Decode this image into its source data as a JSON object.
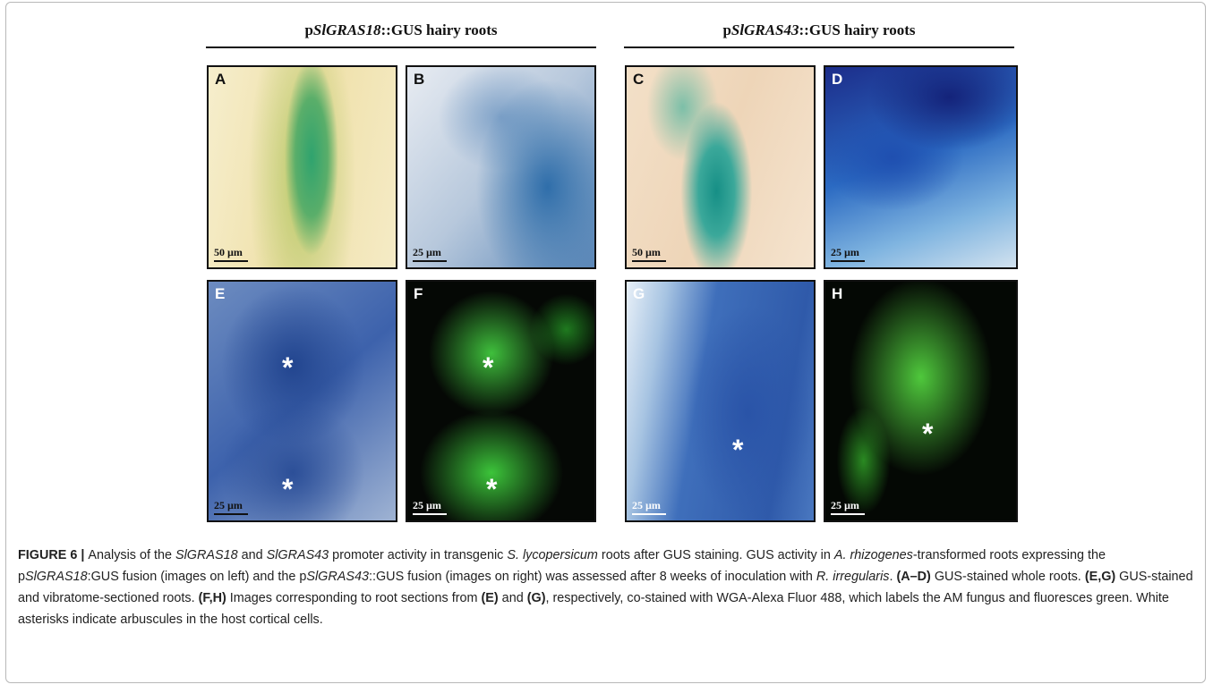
{
  "figure": {
    "headers": [
      [
        "p",
        "SlGRAS18",
        "::GUS hairy roots"
      ],
      [
        "p",
        "SlGRAS43",
        "::GUS hairy roots"
      ]
    ],
    "panels": [
      {
        "label": "A",
        "scale_bar": "50 µm",
        "asterisks": []
      },
      {
        "label": "B",
        "scale_bar": "25 µm",
        "asterisks": []
      },
      {
        "label": "C",
        "scale_bar": "50 µm",
        "asterisks": []
      },
      {
        "label": "D",
        "scale_bar": "25 µm",
        "asterisks": []
      },
      {
        "label": "E",
        "scale_bar": "25 µm",
        "asterisks": [
          "*",
          "*"
        ]
      },
      {
        "label": "F",
        "scale_bar": "25 µm",
        "asterisks": [
          "*",
          "*"
        ]
      },
      {
        "label": "G",
        "scale_bar": "25 µm",
        "asterisks": [
          "*"
        ]
      },
      {
        "label": "H",
        "scale_bar": "25 µm",
        "asterisks": [
          "*"
        ]
      }
    ]
  },
  "caption": [
    "FIGURE 6 | ",
    "Analysis of the ",
    "SlGRAS18",
    " and ",
    "SlGRAS43",
    " promoter activity in transgenic ",
    "S. lycopersicum",
    " roots after GUS staining. GUS activity in ",
    "A. rhizogenes",
    "-transformed roots expressing the p",
    "SlGRAS18",
    ":GUS fusion (images on left) and the p",
    "SlGRAS43",
    "::GUS fusion (images on right) was assessed after 8 weeks of inoculation with ",
    "R. irregularis",
    ". ",
    "(A–D)",
    " GUS-stained whole roots. ",
    "(E,G)",
    " GUS-stained and vibratome-sectioned roots. ",
    "(F,H)",
    " Images corresponding to root sections from ",
    "(E)",
    " and ",
    "(G)",
    ", respectively, co-stained with WGA-Alexa Fluor 488, which labels the AM fungus and fluoresces green. White asterisks indicate arbuscules in the host cortical cells."
  ]
}
